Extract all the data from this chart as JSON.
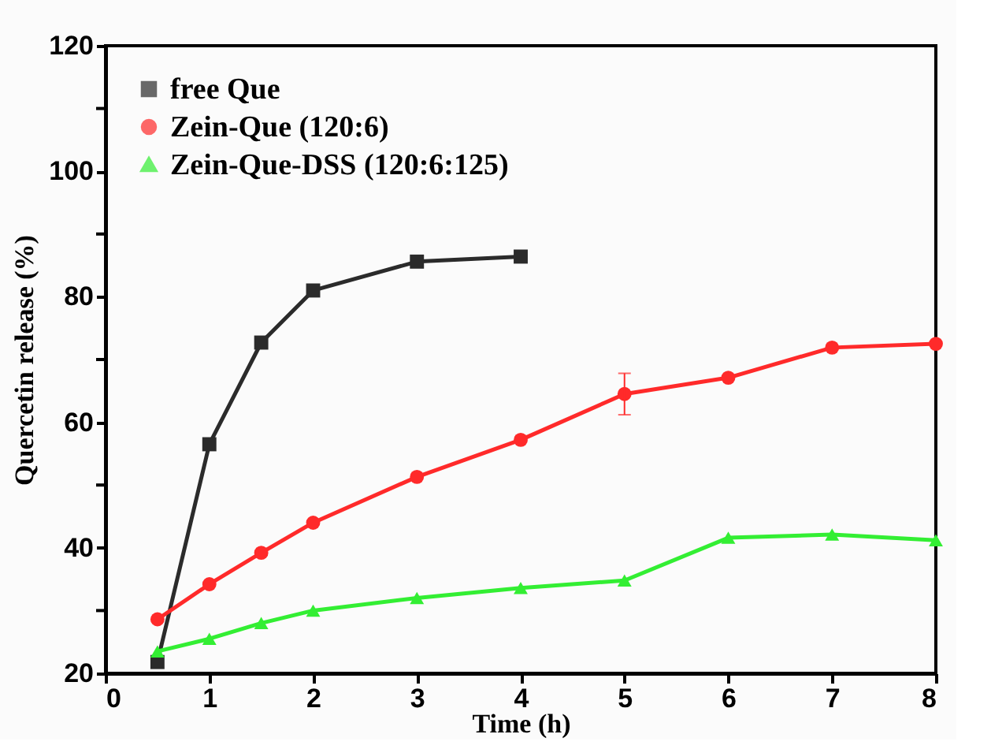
{
  "chart_data": {
    "type": "line",
    "xlabel": "Time (h)",
    "ylabel": "Quercetin release (%)",
    "xlim": [
      0,
      8
    ],
    "xticks": [
      0,
      1,
      2,
      3,
      4,
      5,
      6,
      7,
      8
    ],
    "ylim": [
      20,
      120
    ],
    "yticks": [
      20,
      {
        "value": 30,
        "label": null
      },
      40,
      {
        "value": 50,
        "label": null
      },
      60,
      {
        "value": 70,
        "label": null
      },
      80,
      {
        "value": 90,
        "label": null
      },
      100,
      {
        "value": 110,
        "label": null
      },
      120
    ],
    "grid": false,
    "legend": "top left",
    "line_style": "solid",
    "series": [
      {
        "name": "free Que",
        "color": "#2b2b2b",
        "marker": "square",
        "x": [
          0.5,
          1,
          1.5,
          2,
          3,
          4
        ],
        "values": [
          21.8,
          56.5,
          72.7,
          81,
          85.6,
          86.4
        ]
      },
      {
        "name": "Zein-Que (120:6)",
        "color": "#ff2a2a",
        "marker": "circle",
        "x": [
          0.5,
          1,
          1.5,
          2,
          3,
          4,
          5,
          6,
          7,
          8
        ],
        "values": [
          28.6,
          34.2,
          39.2,
          44,
          51.3,
          57.2,
          64.5,
          67.1,
          71.9,
          72.5
        ],
        "errors": [
          null,
          null,
          null,
          null,
          null,
          null,
          3.3,
          null,
          null,
          null
        ]
      },
      {
        "name": "Zein-Que-DSS (120:6:125)",
        "color": "#33ee33",
        "marker": "triangle",
        "x": [
          0.5,
          1,
          1.5,
          2,
          3,
          4,
          5,
          6,
          7,
          8
        ],
        "values": [
          23.5,
          25.5,
          28,
          30,
          32,
          33.6,
          34.8,
          41.6,
          42.1,
          41.2
        ]
      }
    ]
  }
}
